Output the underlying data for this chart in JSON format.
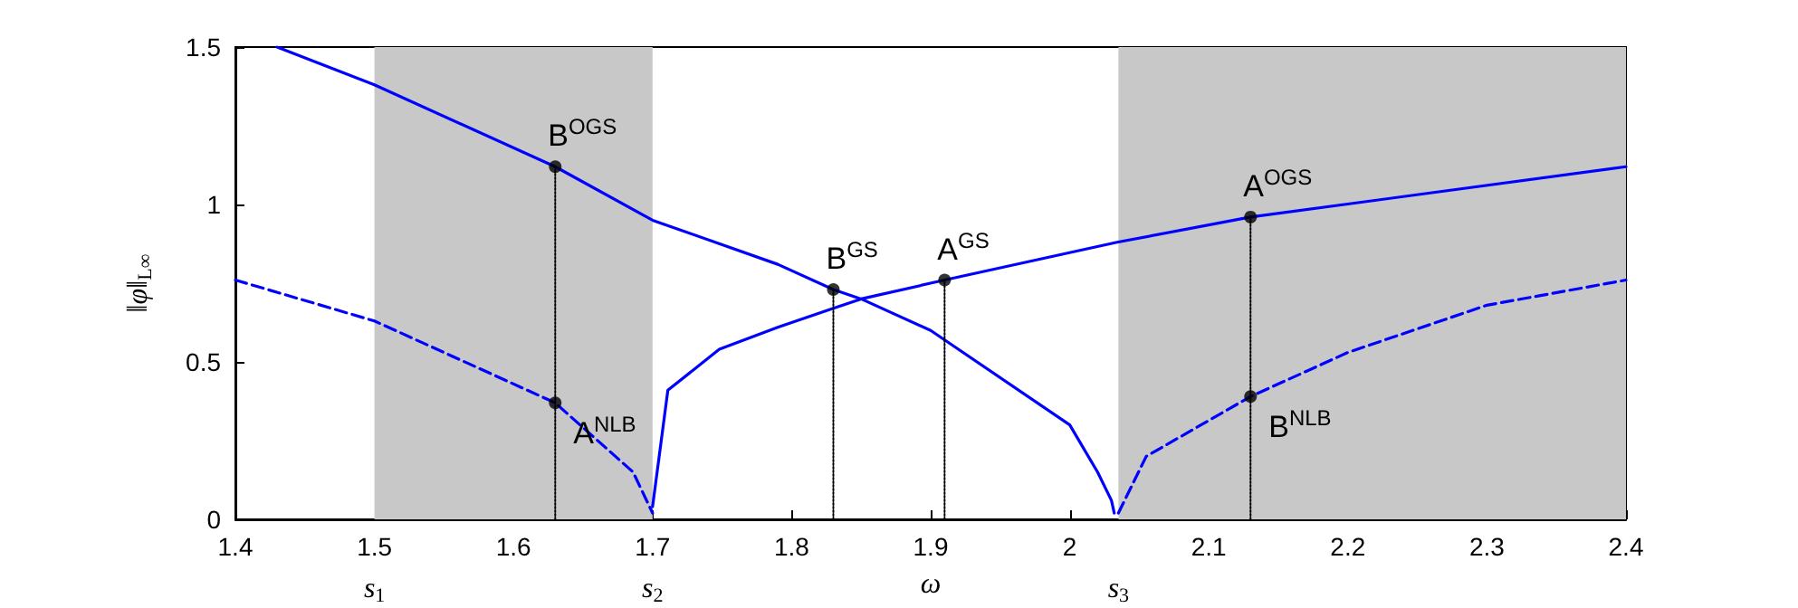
{
  "chart_data": {
    "type": "line",
    "xlabel": "ω",
    "ylabel": "‖φ‖$_{L∞}$",
    "xlim": [
      1.4,
      2.4
    ],
    "xticks": [
      1.4,
      1.5,
      1.6,
      1.7,
      1.8,
      1.9,
      2,
      2.1,
      2.2,
      2.3,
      2.4
    ],
    "ylim": [
      0,
      1.5
    ],
    "yticks": [
      0,
      0.5,
      1,
      1.5
    ],
    "grid": false,
    "bands": [
      {
        "axis": "x",
        "from": 1.5,
        "to": 1.7,
        "color": "#c8c8c8"
      },
      {
        "axis": "x",
        "from": 2.035,
        "to": 2.4,
        "color": "#c8c8c8"
      }
    ],
    "series": [
      {
        "color": "#0000ff",
        "line_style": "solid",
        "marker": "none",
        "x": [
          1.43,
          1.5,
          1.63,
          1.7,
          1.79,
          1.83,
          1.85,
          1.9,
          2.0,
          2.02,
          2.03,
          2.032
        ],
        "values": [
          1.5,
          1.38,
          1.12,
          0.95,
          0.81,
          0.73,
          0.7,
          0.6,
          0.3,
          0.15,
          0.06,
          0.02
        ]
      },
      {
        "color": "#0000ff",
        "line_style": "solid",
        "marker": "none",
        "x": [
          1.7,
          1.711,
          1.748,
          1.79,
          1.83,
          1.85,
          1.91,
          2.034,
          2.13,
          2.4
        ],
        "values": [
          0.04,
          0.41,
          0.54,
          0.61,
          0.67,
          0.7,
          0.76,
          0.88,
          0.96,
          1.12
        ]
      },
      {
        "color": "#0000ff",
        "line_style": "dashed",
        "marker": "none",
        "x": [
          1.4,
          1.5,
          1.63,
          1.686,
          1.7
        ],
        "values": [
          0.76,
          0.63,
          0.37,
          0.15,
          0.02
        ]
      },
      {
        "color": "#0000ff",
        "line_style": "dashed",
        "marker": "none",
        "x": [
          2.035,
          2.055,
          2.13,
          2.2,
          2.3,
          2.4
        ],
        "values": [
          0.02,
          0.2,
          0.39,
          0.53,
          0.68,
          0.76
        ]
      },
      {
        "color": "#000000",
        "line_style": "dotted",
        "marker": "none",
        "x": [
          1.63,
          1.63
        ],
        "values": [
          0,
          1.12
        ]
      },
      {
        "color": "#000000",
        "line_style": "dotted",
        "marker": "none",
        "x": [
          1.83,
          1.83
        ],
        "values": [
          0,
          0.73
        ]
      },
      {
        "color": "#000000",
        "line_style": "dotted",
        "marker": "none",
        "x": [
          1.91,
          1.91
        ],
        "values": [
          0,
          0.76
        ]
      },
      {
        "color": "#000000",
        "line_style": "dotted",
        "marker": "none",
        "x": [
          2.13,
          2.13
        ],
        "values": [
          0,
          0.96
        ]
      },
      {
        "type": "scatter",
        "color": "#000000",
        "marker": "circle",
        "x": [
          1.63,
          1.63,
          1.83,
          1.91,
          2.13,
          2.13
        ],
        "values": [
          1.12,
          0.37,
          0.73,
          0.76,
          0.96,
          0.39
        ]
      }
    ],
    "annotations": [
      {
        "text": "B$^{OGS}$",
        "x": 1.63,
        "y": 1.12
      },
      {
        "text": "A$^{NLB}$",
        "x": 1.63,
        "y": 0.37
      },
      {
        "text": "B$^{GS}$",
        "x": 1.83,
        "y": 0.73
      },
      {
        "text": "A$^{GS}$",
        "x": 1.91,
        "y": 0.76
      },
      {
        "text": "A$^{OGS}$",
        "x": 2.13,
        "y": 0.96
      },
      {
        "text": "B$^{NLB}$",
        "x": 2.13,
        "y": 0.39
      },
      {
        "text": "s$_{1}$",
        "x": 1.5,
        "y": 0
      },
      {
        "text": "s$_{2}$",
        "x": 1.7,
        "y": 0
      },
      {
        "text": "s$_{3}$",
        "x": 2.035,
        "y": 0
      }
    ]
  }
}
